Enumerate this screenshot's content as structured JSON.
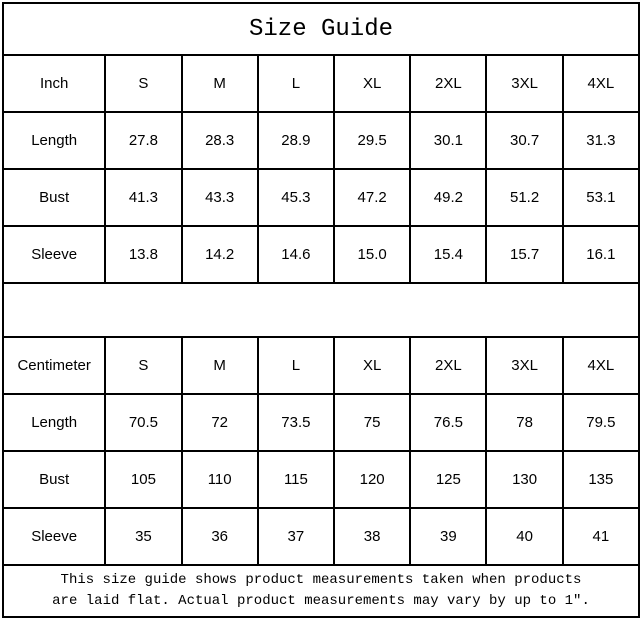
{
  "title": "Size Guide",
  "unit_tables": [
    {
      "unit_label": "Inch",
      "sizes": [
        "S",
        "M",
        "L",
        "XL",
        "2XL",
        "3XL",
        "4XL"
      ],
      "rows": [
        {
          "label": "Length",
          "values": [
            "27.8",
            "28.3",
            "28.9",
            "29.5",
            "30.1",
            "30.7",
            "31.3"
          ]
        },
        {
          "label": "Bust",
          "values": [
            "41.3",
            "43.3",
            "45.3",
            "47.2",
            "49.2",
            "51.2",
            "53.1"
          ]
        },
        {
          "label": "Sleeve",
          "values": [
            "13.8",
            "14.2",
            "14.6",
            "15.0",
            "15.4",
            "15.7",
            "16.1"
          ]
        }
      ]
    },
    {
      "unit_label": "Centimeter",
      "sizes": [
        "S",
        "M",
        "L",
        "XL",
        "2XL",
        "3XL",
        "4XL"
      ],
      "rows": [
        {
          "label": "Length",
          "values": [
            "70.5",
            "72",
            "73.5",
            "75",
            "76.5",
            "78",
            "79.5"
          ]
        },
        {
          "label": "Bust",
          "values": [
            "105",
            "110",
            "115",
            "120",
            "125",
            "130",
            "135"
          ]
        },
        {
          "label": "Sleeve",
          "values": [
            "35",
            "36",
            "37",
            "38",
            "39",
            "40",
            "41"
          ]
        }
      ]
    }
  ],
  "footnote_lines": [
    "This size guide shows product measurements taken when products",
    "are laid flat. Actual product measurements may vary by up to 1″."
  ]
}
